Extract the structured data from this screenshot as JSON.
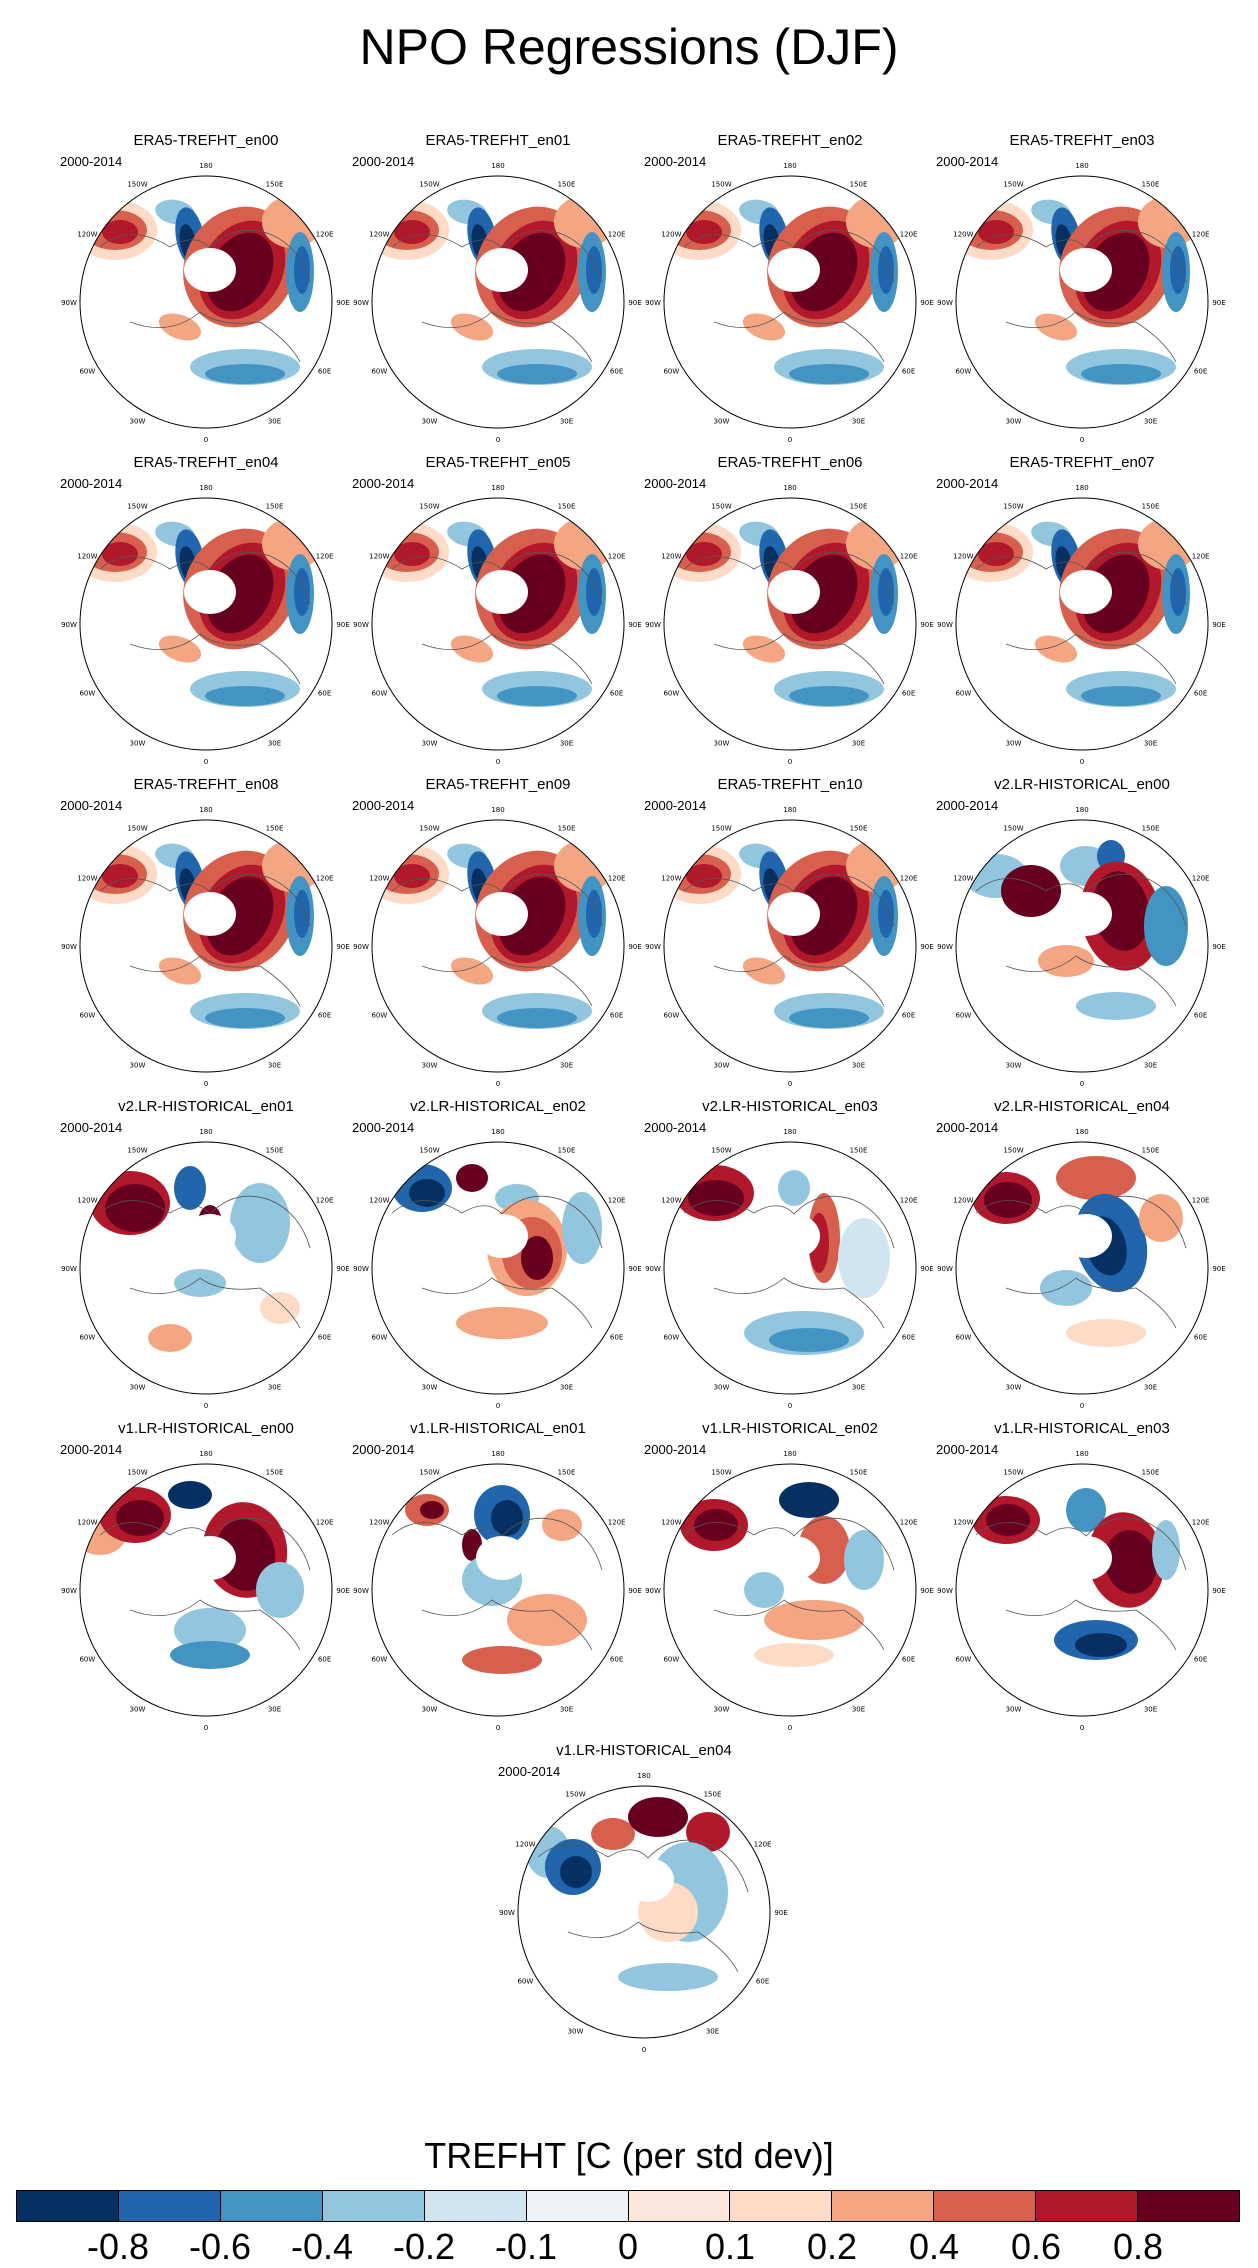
{
  "figure": {
    "title": "NPO Regressions (DJF)",
    "period": "2000-2014",
    "longitude_labels": [
      "180",
      "150E",
      "120E",
      "90E",
      "60E",
      "30E",
      "0",
      "30W",
      "60W",
      "90W",
      "120W",
      "150W"
    ],
    "panels": [
      {
        "title": "ERA5-TREFHT_en00",
        "pattern": "era5"
      },
      {
        "title": "ERA5-TREFHT_en01",
        "pattern": "era5"
      },
      {
        "title": "ERA5-TREFHT_en02",
        "pattern": "era5"
      },
      {
        "title": "ERA5-TREFHT_en03",
        "pattern": "era5"
      },
      {
        "title": "ERA5-TREFHT_en04",
        "pattern": "era5"
      },
      {
        "title": "ERA5-TREFHT_en05",
        "pattern": "era5"
      },
      {
        "title": "ERA5-TREFHT_en06",
        "pattern": "era5"
      },
      {
        "title": "ERA5-TREFHT_en07",
        "pattern": "era5"
      },
      {
        "title": "ERA5-TREFHT_en08",
        "pattern": "era5"
      },
      {
        "title": "ERA5-TREFHT_en09",
        "pattern": "era5"
      },
      {
        "title": "ERA5-TREFHT_en10",
        "pattern": "era5"
      },
      {
        "title": "v2.LR-HISTORICAL_en00",
        "pattern": "v2a"
      },
      {
        "title": "v2.LR-HISTORICAL_en01",
        "pattern": "v2b"
      },
      {
        "title": "v2.LR-HISTORICAL_en02",
        "pattern": "v2c"
      },
      {
        "title": "v2.LR-HISTORICAL_en03",
        "pattern": "v2d"
      },
      {
        "title": "v2.LR-HISTORICAL_en04",
        "pattern": "v2e"
      },
      {
        "title": "v1.LR-HISTORICAL_en00",
        "pattern": "v1a"
      },
      {
        "title": "v1.LR-HISTORICAL_en01",
        "pattern": "v1b"
      },
      {
        "title": "v1.LR-HISTORICAL_en02",
        "pattern": "v1c"
      },
      {
        "title": "v1.LR-HISTORICAL_en03",
        "pattern": "v1d"
      },
      {
        "title": "v1.LR-HISTORICAL_en04",
        "pattern": "v1e"
      }
    ]
  },
  "colorbar": {
    "title": "TREFHT [C (per std dev)]",
    "colors": [
      "#053061",
      "#2166ac",
      "#4393c3",
      "#92c5de",
      "#d1e5f0",
      "#eef3f8",
      "#fbe6dc",
      "#fddbc7",
      "#f4a582",
      "#d6604d",
      "#b2182b",
      "#67001f"
    ],
    "tick_labels": [
      "-0.8",
      "-0.6",
      "-0.4",
      "-0.2",
      "-0.1",
      "0",
      "0.1",
      "0.2",
      "0.4",
      "0.6",
      "0.8"
    ]
  },
  "style": {
    "deep_red": "#67001f",
    "red": "#b2182b",
    "mid_red": "#d6604d",
    "light_red": "#f4a582",
    "pale_red": "#fddbc7",
    "deep_blue": "#053061",
    "blue": "#2166ac",
    "mid_blue": "#4393c3",
    "light_blue": "#92c5de",
    "pale_blue": "#d1e5f0"
  }
}
